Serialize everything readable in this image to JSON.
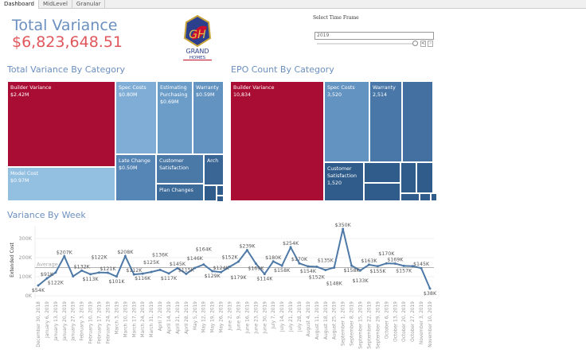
{
  "tabs": [
    "Dashboard",
    "MidLevel",
    "Granular"
  ],
  "header": {
    "title": "Total Variance",
    "value": "$6,823,648.51"
  },
  "logo": {
    "text": "GRAND HOMES"
  },
  "time_frame": {
    "label": "Select Time Frame",
    "value": "2019",
    "prev_label": "<",
    "next_label": ">"
  },
  "variance_by_category": {
    "title": "Total Variance By Category",
    "cells": [
      {
        "name": "Builder Variance",
        "value": "$2.42M",
        "color": "#a90d34"
      },
      {
        "name": "Model Cost",
        "value": "$0.97M",
        "color": "#93bfe0"
      },
      {
        "name": "Spec Costs",
        "value": "$0.80M",
        "color": "#7fadd6"
      },
      {
        "name": "Estimating Purchasing",
        "value": "$0.69M",
        "color": "#6c9dc9"
      },
      {
        "name": "Warranty",
        "value": "$0.59M",
        "color": "#6393c0"
      },
      {
        "name": "Late Change",
        "value": "$0.50M",
        "color": "#5686b6"
      },
      {
        "name": "Customer Satisfaction",
        "value": "",
        "color": "#4a79a8"
      },
      {
        "name": "Plan Changes",
        "value": "",
        "color": "#3d6b9a"
      },
      {
        "name": "Arch",
        "value": "",
        "color": "#3a6696"
      },
      {
        "name": "",
        "value": "",
        "color": "#2f5c8a"
      },
      {
        "name": "",
        "value": "",
        "color": "#2f5c8a"
      },
      {
        "name": "",
        "value": "",
        "color": "#2f5c8a"
      }
    ]
  },
  "epo_by_category": {
    "title": "EPO Count By Category",
    "cells": [
      {
        "name": "Builder Variance",
        "value": "10,834",
        "color": "#a90d34"
      },
      {
        "name": "Spec Costs",
        "value": "3,520",
        "color": "#6393c0"
      },
      {
        "name": "Warranty",
        "value": "2,514",
        "color": "#4877a8"
      },
      {
        "name": "",
        "value": "",
        "color": "#4370a0"
      },
      {
        "name": "Customer Satisfaction",
        "value": "1,520",
        "color": "#2f5c8a"
      },
      {
        "name": "",
        "value": "",
        "color": "#2f5c8a"
      },
      {
        "name": "",
        "value": "",
        "color": "#2f5c8a"
      },
      {
        "name": "",
        "value": "",
        "color": "#2f5c8a"
      },
      {
        "name": "",
        "value": "",
        "color": "#2f5c8a"
      },
      {
        "name": "",
        "value": "",
        "color": "#2f5c8a"
      },
      {
        "name": "",
        "value": "",
        "color": "#2f5c8a"
      },
      {
        "name": "",
        "value": "",
        "color": "#2f5c8a"
      }
    ]
  },
  "chart_data": {
    "type": "line",
    "title": "Variance By Week",
    "ylabel": "Extended Cost",
    "ylim": [
      0,
      350
    ],
    "yticks": [
      "0K",
      "100K",
      "200K",
      "300K"
    ],
    "ytick_values": [
      0,
      100,
      200,
      300
    ],
    "reference_line": {
      "label": "Average",
      "value": 148
    },
    "color": "#4e79a7",
    "grid": true,
    "x": [
      "December 30, 2018",
      "January 6, 2019",
      "January 13, 2019",
      "January 20, 2019",
      "January 27, 2019",
      "February 3, 2019",
      "February 10, 2019",
      "February 17, 2019",
      "February 24, 2019",
      "March 3, 2019",
      "March 10, 2019",
      "March 17, 2019",
      "March 24, 2019",
      "March 31, 2019",
      "April 7, 2019",
      "April 14, 2019",
      "April 21, 2019",
      "April 28, 2019",
      "May 5, 2019",
      "May 12, 2019",
      "May 19, 2019",
      "May 26, 2019",
      "June 2, 2019",
      "June 9, 2019",
      "June 16, 2019",
      "June 23, 2019",
      "June 30, 2019",
      "July 7, 2019",
      "July 14, 2019",
      "July 21, 2019",
      "July 28, 2019",
      "August 4, 2019",
      "August 11, 2019",
      "August 18, 2019",
      "August 25, 2019",
      "September 1, 2019",
      "September 8, 2019",
      "September 15, 2019",
      "September 22, 2019",
      "September 29, 2019",
      "October 6, 2019",
      "October 13, 2019",
      "October 20, 2019",
      "October 27, 2019",
      "November 3, 2019",
      "November 10, 2019"
    ],
    "values": [
      54,
      91,
      122,
      207,
      102,
      132,
      113,
      122,
      121,
      101,
      208,
      112,
      116,
      125,
      136,
      117,
      145,
      115,
      146,
      164,
      129,
      124,
      152,
      179,
      239,
      169,
      114,
      180,
      158,
      254,
      170,
      154,
      152,
      135,
      148,
      350,
      158,
      133,
      163,
      155,
      170,
      169,
      157,
      155,
      145,
      38
    ],
    "labels": [
      "$54K",
      "$91K",
      "$122K",
      "$207K",
      null,
      "$132K",
      "$113K",
      "$122K",
      "$121K",
      "$101K",
      "$208K",
      "$112K",
      "$116K",
      "$125K",
      "$136K",
      "$117K",
      "$145K",
      "$115K",
      "$146K",
      "$164K",
      "$129K",
      "$124K",
      "$152K",
      "$179K",
      "$239K",
      "$169K",
      "$114K",
      "$180K",
      "$158K",
      "$254K",
      "$170K",
      "$154K",
      "$152K",
      "$135K",
      "$148K",
      "$350K",
      "$158K",
      "$133K",
      "$163K",
      "$155K",
      "$170K",
      "$169K",
      "$157K",
      null,
      "$145K",
      "$38K"
    ]
  }
}
